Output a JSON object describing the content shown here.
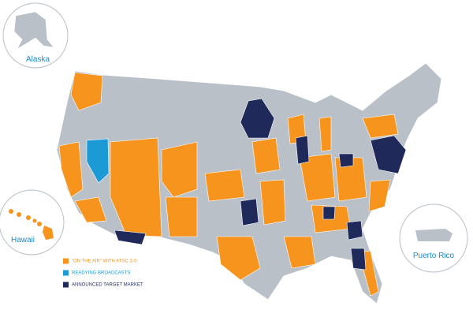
{
  "insets": [
    {
      "label": "Alaska"
    },
    {
      "label": "Hawaii"
    },
    {
      "label": "Puerto Rico"
    }
  ],
  "legend": [
    {
      "label": "“ON THE AIR” WITH ATSC 3.0",
      "color": "#f7941d"
    },
    {
      "label": "READYING BROADCASTS",
      "color": "#1b9ad6"
    },
    {
      "label": "ANNOUNCED TARGET MARKET",
      "color": "#1f2a5a"
    }
  ]
}
